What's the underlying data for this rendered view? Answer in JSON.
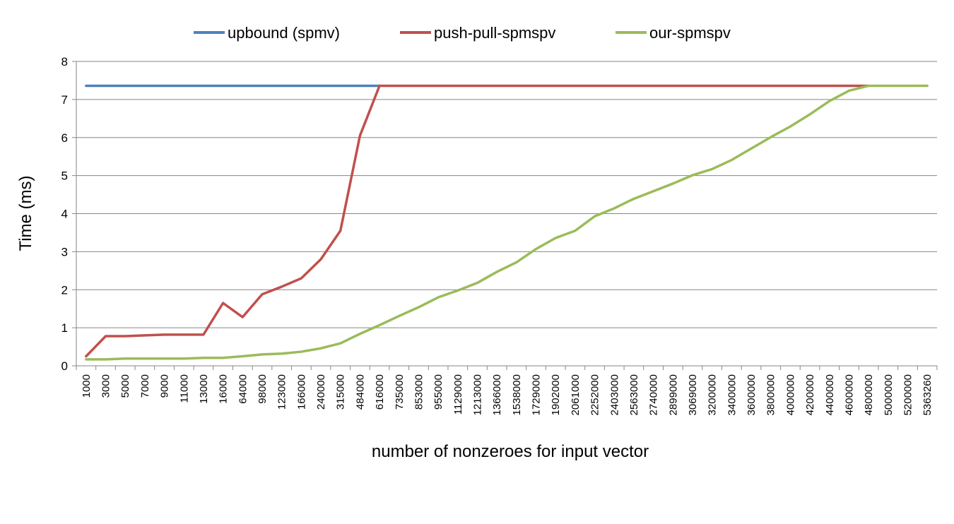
{
  "chart_data": {
    "type": "line",
    "title": "",
    "xlabel": "number of nonzeroes for input vector",
    "ylabel": "Time (ms)",
    "ylim": [
      0,
      8
    ],
    "yticks": [
      0,
      1,
      2,
      3,
      4,
      5,
      6,
      7,
      8
    ],
    "grid": "horizontal",
    "legend_position": "top",
    "categories": [
      "1000",
      "3000",
      "5000",
      "7000",
      "9000",
      "11000",
      "13000",
      "16000",
      "64000",
      "98000",
      "123000",
      "166000",
      "240000",
      "315000",
      "484000",
      "616000",
      "735000",
      "853000",
      "955000",
      "1129000",
      "1213000",
      "1366000",
      "1538000",
      "1729000",
      "1902000",
      "2061000",
      "2252000",
      "2403000",
      "2563000",
      "2740000",
      "2899000",
      "3069000",
      "3200000",
      "3400000",
      "3600000",
      "3800000",
      "4000000",
      "4200000",
      "4400000",
      "4600000",
      "4800000",
      "5000000",
      "5200000",
      "5363260"
    ],
    "series": [
      {
        "name": "upbound (spmv)",
        "color": "#4F81BD",
        "values": [
          7.36,
          7.36,
          7.36,
          7.36,
          7.36,
          7.36,
          7.36,
          7.36,
          7.36,
          7.36,
          7.36,
          7.36,
          7.36,
          7.36,
          7.36,
          7.36,
          null,
          null,
          null,
          null,
          null,
          null,
          null,
          null,
          null,
          null,
          null,
          null,
          null,
          null,
          null,
          null,
          null,
          null,
          null,
          null,
          null,
          null,
          null,
          null,
          null,
          null,
          null,
          null
        ]
      },
      {
        "name": "push-pull-spmspv",
        "color": "#C0504D",
        "values": [
          0.25,
          0.78,
          0.78,
          0.8,
          0.82,
          0.82,
          0.82,
          1.65,
          1.28,
          1.88,
          2.08,
          2.3,
          2.8,
          3.55,
          6.05,
          7.36,
          7.36,
          7.36,
          7.36,
          7.36,
          7.36,
          7.36,
          7.36,
          7.36,
          7.36,
          7.36,
          7.36,
          7.36,
          7.36,
          7.36,
          7.36,
          7.36,
          7.36,
          7.36,
          7.36,
          7.36,
          7.36,
          7.36,
          7.36,
          7.36,
          7.36,
          null,
          null,
          null
        ]
      },
      {
        "name": "our-spmspv",
        "color": "#9BBB59",
        "values": [
          0.17,
          0.17,
          0.19,
          0.19,
          0.19,
          0.19,
          0.21,
          0.21,
          0.25,
          0.3,
          0.32,
          0.37,
          0.46,
          0.59,
          0.84,
          1.07,
          1.31,
          1.54,
          1.8,
          1.98,
          2.18,
          2.47,
          2.72,
          3.07,
          3.36,
          3.55,
          3.93,
          4.14,
          4.39,
          4.59,
          4.79,
          5.01,
          5.17,
          5.41,
          5.71,
          6.01,
          6.29,
          6.61,
          6.96,
          7.23,
          7.36,
          7.36,
          7.36,
          7.36
        ]
      }
    ]
  }
}
